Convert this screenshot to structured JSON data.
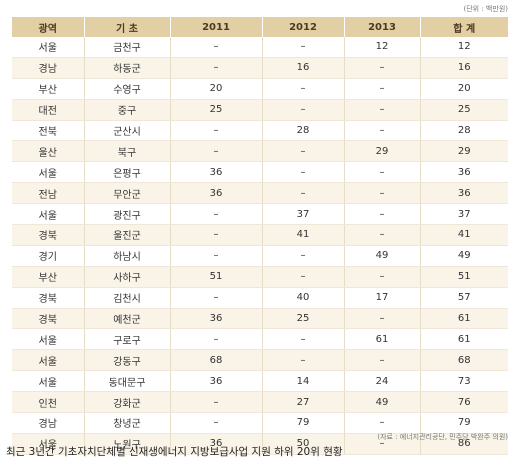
{
  "unit_note": "(단위 : 백만원)",
  "table": {
    "header": [
      "광역",
      "기 초",
      "2011",
      "2012",
      "2013",
      "합 계"
    ],
    "rows": [
      [
        "서울",
        "금천구",
        "–",
        "–",
        "12",
        "12"
      ],
      [
        "경남",
        "하동군",
        "–",
        "16",
        "–",
        "16"
      ],
      [
        "부산",
        "수영구",
        "20",
        "–",
        "–",
        "20"
      ],
      [
        "대전",
        "중구",
        "25",
        "–",
        "–",
        "25"
      ],
      [
        "전북",
        "군산시",
        "–",
        "28",
        "–",
        "28"
      ],
      [
        "울산",
        "북구",
        "–",
        "–",
        "29",
        "29"
      ],
      [
        "서울",
        "은평구",
        "36",
        "–",
        "–",
        "36"
      ],
      [
        "전남",
        "무안군",
        "36",
        "–",
        "–",
        "36"
      ],
      [
        "서울",
        "광진구",
        "–",
        "37",
        "–",
        "37"
      ],
      [
        "경북",
        "울진군",
        "–",
        "41",
        "–",
        "41"
      ],
      [
        "경기",
        "하남시",
        "–",
        "–",
        "49",
        "49"
      ],
      [
        "부산",
        "사하구",
        "51",
        "–",
        "–",
        "51"
      ],
      [
        "경북",
        "김천시",
        "–",
        "40",
        "17",
        "57"
      ],
      [
        "경북",
        "예천군",
        "36",
        "25",
        "–",
        "61"
      ],
      [
        "서울",
        "구로구",
        "–",
        "–",
        "61",
        "61"
      ],
      [
        "서울",
        "강동구",
        "68",
        "–",
        "–",
        "68"
      ],
      [
        "서울",
        "동대문구",
        "36",
        "14",
        "24",
        "73"
      ],
      [
        "인천",
        "강화군",
        "–",
        "27",
        "49",
        "76"
      ],
      [
        "경남",
        "창녕군",
        "–",
        "79",
        "–",
        "79"
      ],
      [
        "서울",
        "노원구",
        "36",
        "50",
        "–",
        "86"
      ]
    ]
  },
  "source": "(자료 : 에너지관리공단, 민주당 박완주 의원)",
  "caption": "최근 3년간 기초자치단체별 신재생에너지 지방보급사업 지원 하위 20위 현황"
}
